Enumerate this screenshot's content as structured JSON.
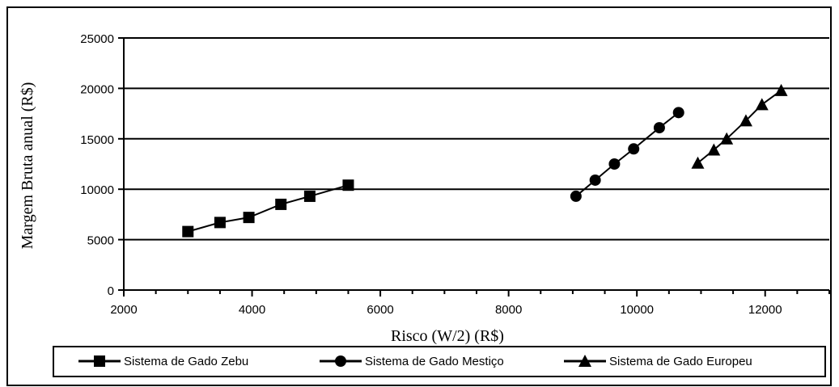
{
  "chart_data": {
    "type": "line",
    "xlabel": "Risco (W/2) (R$)",
    "ylabel": "Margem Bruta anual (R$)",
    "xlim": [
      2000,
      13000
    ],
    "ylim": [
      0,
      25000
    ],
    "x_ticks": [
      "2000",
      "4000",
      "6000",
      "8000",
      "10000",
      "12000"
    ],
    "y_ticks": [
      "0",
      "5000",
      "10000",
      "15000",
      "20000",
      "25000"
    ],
    "grid": "horizontal major lines",
    "legend_position": "bottom",
    "series": [
      {
        "name": "Sistema de Gado Zebu",
        "marker": "square",
        "x": [
          3000,
          3500,
          3950,
          4450,
          4900,
          5500
        ],
        "y": [
          5800,
          6700,
          7200,
          8500,
          9300,
          10400
        ]
      },
      {
        "name": "Sistema de Gado Mestiço",
        "marker": "circle",
        "x": [
          9050,
          9350,
          9650,
          9950,
          10350,
          10650
        ],
        "y": [
          9300,
          10900,
          12500,
          14000,
          16100,
          17600
        ]
      },
      {
        "name": "Sistema de Gado Europeu",
        "marker": "triangle",
        "x": [
          10950,
          11200,
          11400,
          11700,
          11950,
          12250
        ],
        "y": [
          12600,
          13900,
          15000,
          16800,
          18400,
          19800
        ]
      }
    ]
  }
}
